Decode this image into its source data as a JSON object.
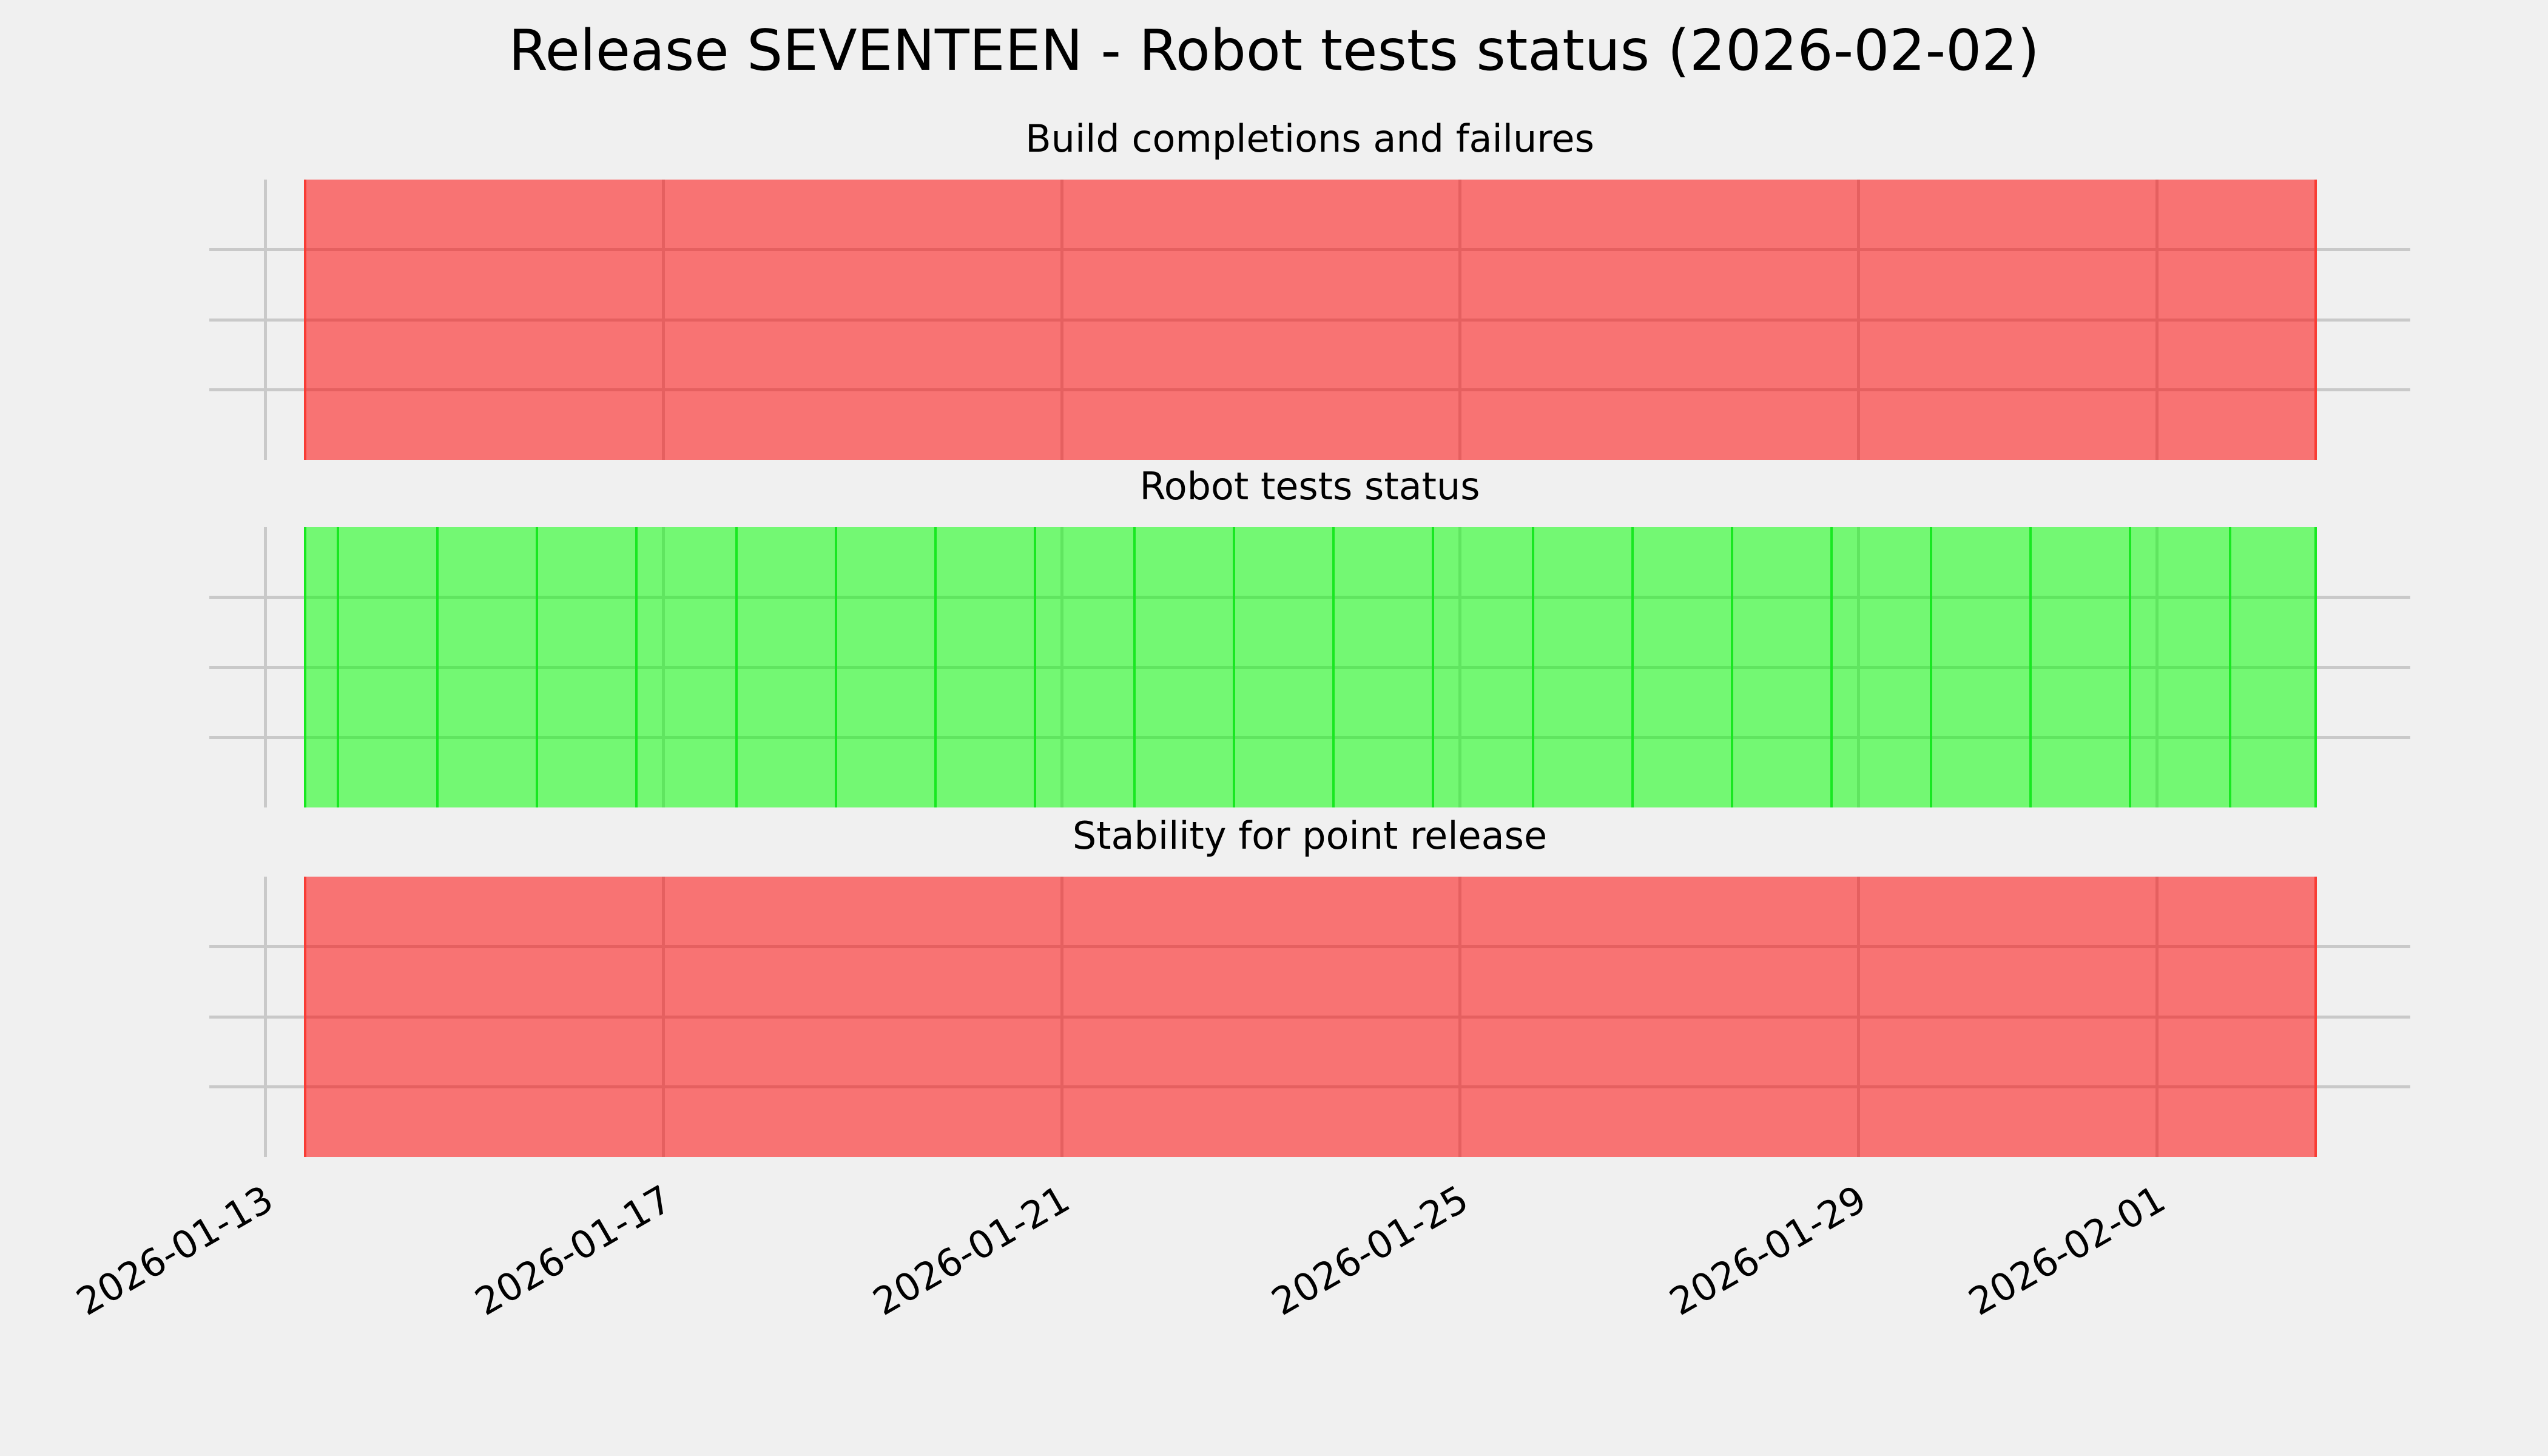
{
  "figure": {
    "background_color": "#f0f0f0",
    "grid_color": "#c9c9c9",
    "text_color": "#000000"
  },
  "chart_data": {
    "type": "bar",
    "subtype": "status-timeline-gantt",
    "title": "Release SEVENTEEN - Robot tests status (2026-02-02)",
    "legend": false,
    "x": {
      "scale": "date",
      "min": "2026-01-12T10:30",
      "max": "2026-02-03T13:00",
      "tick_labels": [
        "2026-01-13",
        "2026-01-17",
        "2026-01-21",
        "2026-01-25",
        "2026-01-29",
        "2026-02-01"
      ],
      "tick_rotation_deg": 30,
      "grid": true
    },
    "y": {
      "min": 0,
      "max": 4,
      "gridlines_at": [
        1,
        2,
        3
      ],
      "tick_labels_shown": false,
      "grid": true
    },
    "panels": [
      {
        "title": "Build completions and failures",
        "status_color": "red",
        "bar": {
          "start": "2026-01-13T09:20",
          "end": "2026-02-02T14:30",
          "fill_hex": "#f67876",
          "fill_rgba": "rgba(255,0,0,0.52)",
          "edge_color": "#f83d35",
          "grid_tint_hex": "#e16361"
        }
      },
      {
        "title": "Robot tests status",
        "status_color": "green",
        "bar": {
          "start": "2026-01-13T09:20",
          "end": "2026-02-02T14:30",
          "fill_hex": "#73f877",
          "fill_rgba": "rgba(0,255,0,0.52)",
          "edge_color": "#18e821",
          "grid_tint_hex": "#60e560",
          "day_boundaries": {
            "first": "2026-01-13T17:30",
            "interval_days": 1,
            "count": 20
          }
        }
      },
      {
        "title": "Stability for point release",
        "status_color": "red",
        "bar": {
          "start": "2026-01-13T09:20",
          "end": "2026-02-02T14:30",
          "fill_hex": "#f67876",
          "fill_rgba": "rgba(255,0,0,0.52)",
          "edge_color": "#f83d35",
          "grid_tint_hex": "#e16361"
        }
      }
    ]
  }
}
